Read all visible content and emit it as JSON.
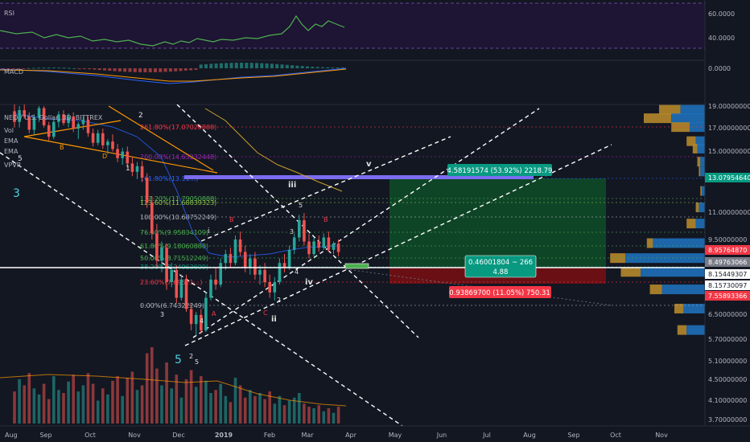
{
  "panes": {
    "rsi": {
      "title": "RSI",
      "ticks": [
        "60.0000",
        "40.0000"
      ]
    },
    "macd": {
      "title": "MACD",
      "ticks": [
        "0.0000"
      ]
    }
  },
  "main": {
    "symbol_line": "NEO / U.S. Dollar, 3D, BITTREX",
    "indicators": [
      "Vol",
      "EMA",
      "EMA",
      "VPVR"
    ]
  },
  "axis": {
    "y_ticks": [
      "19.00000000",
      "17.00000000",
      "15.00000000",
      "11.00000000",
      "9.50000000",
      "6.50000000",
      "5.70000000",
      "5.10000000",
      "4.50000000",
      "4.10000000",
      "3.70000000"
    ],
    "x_ticks": [
      "Aug",
      "Sep",
      "Oct",
      "Nov",
      "Dec",
      "2019",
      "Feb",
      "Mar",
      "Apr",
      "May",
      "Jun",
      "Jul",
      "Aug",
      "Sep",
      "Oct",
      "Nov"
    ]
  },
  "price_tags": [
    {
      "text": "13.07954640",
      "bg": "#089981",
      "fg": "#ffffff"
    },
    {
      "text": "8.95764870",
      "bg": "#f23645",
      "fg": "#ffffff"
    },
    {
      "text": "8.49763066",
      "bg": "#787b86",
      "fg": "#ffffff"
    },
    {
      "text": "8.15449307",
      "bg": "#ffffff",
      "fg": "#131722"
    },
    {
      "text": "8.15730097",
      "bg": "#ffffff",
      "fg": "#131722"
    },
    {
      "text": "7.55893366",
      "bg": "#f23645",
      "fg": "#ffffff"
    }
  ],
  "fib_levels": [
    {
      "text": "261.80%(17.07020888)",
      "color": "#f23645"
    },
    {
      "text": "200.00%(14.63232448)",
      "color": "#9c27b0"
    },
    {
      "text": "161.80%(13.11...)",
      "color": "#2962ff"
    },
    {
      "text": "137.20%(11.79050888)",
      "color": "#4caf50"
    },
    {
      "text": "123.60%(11.68839323)",
      "color": "#8bc34a"
    },
    {
      "text": "100.00%(10.68752249)",
      "color": "#b2b5be"
    },
    {
      "text": "76.40%(9.95834109)",
      "color": "#4caf50"
    },
    {
      "text": "61.80%(9.18060888)",
      "color": "#4caf50"
    },
    {
      "text": "50.00%(8.71512249)",
      "color": "#4caf50"
    },
    {
      "text": "38.20%(8.24963609)",
      "color": "#089981"
    },
    {
      "text": "23.60%(7.69521...)",
      "color": "#f23645"
    },
    {
      "text": "0.00%(6.74322249)",
      "color": "#b2b5be"
    }
  ],
  "position": {
    "target_label": "4.58191574 (53.92%) 2218.79",
    "center_label_1": "0.46001804 ~ 266",
    "center_label_2": "4.88",
    "stop_label": "0.93869700 (11.05%) 750.31"
  },
  "waves": [
    "5",
    "3",
    "B",
    "D",
    "1",
    "2",
    "iii",
    "v",
    "5",
    "B",
    "i",
    "A",
    "3",
    "4",
    "iv",
    "C",
    "2",
    "ii",
    "3",
    "4",
    "5",
    "2",
    "5",
    "B"
  ],
  "chart_data": {
    "type": "candlestick",
    "timeframe": "3D",
    "x_range": [
      "2018-08",
      "2019-11"
    ],
    "y_range": [
      3.7,
      19.0
    ],
    "y_scale": "log",
    "candles": [
      [
        18.5,
        19.5,
        17.0,
        17.5
      ],
      [
        17.5,
        19.0,
        17.0,
        18.6
      ],
      [
        18.6,
        19.2,
        17.8,
        18.0
      ],
      [
        18.0,
        18.4,
        16.5,
        16.8
      ],
      [
        16.8,
        18.2,
        16.4,
        17.9
      ],
      [
        17.9,
        19.0,
        17.5,
        18.8
      ],
      [
        18.8,
        19.0,
        17.0,
        17.2
      ],
      [
        17.2,
        17.5,
        15.9,
        16.2
      ],
      [
        16.2,
        17.8,
        16.0,
        17.5
      ],
      [
        17.5,
        18.5,
        17.0,
        18.2
      ],
      [
        18.2,
        18.6,
        17.2,
        17.4
      ],
      [
        17.4,
        18.3,
        17.0,
        18.0
      ],
      [
        18.0,
        18.4,
        16.6,
        16.9
      ],
      [
        16.9,
        17.5,
        16.0,
        17.3
      ],
      [
        17.3,
        18.0,
        16.8,
        17.7
      ],
      [
        17.7,
        18.0,
        16.2,
        16.5
      ],
      [
        16.5,
        16.9,
        15.4,
        15.7
      ],
      [
        15.7,
        16.8,
        15.5,
        16.5
      ],
      [
        16.5,
        16.9,
        15.2,
        15.5
      ],
      [
        15.5,
        16.0,
        14.8,
        15.8
      ],
      [
        15.8,
        16.4,
        15.0,
        15.2
      ],
      [
        15.2,
        15.6,
        14.2,
        14.5
      ],
      [
        14.5,
        15.3,
        14.0,
        15.0
      ],
      [
        15.0,
        15.4,
        13.8,
        14.1
      ],
      [
        14.1,
        14.6,
        13.2,
        13.5
      ],
      [
        13.5,
        14.2,
        13.0,
        13.9
      ],
      [
        13.9,
        14.3,
        12.8,
        13.1
      ],
      [
        13.1,
        13.4,
        11.2,
        11.5
      ],
      [
        11.5,
        11.9,
        9.5,
        9.8
      ],
      [
        9.8,
        10.3,
        8.2,
        8.5
      ],
      [
        8.5,
        9.4,
        8.0,
        9.1
      ],
      [
        9.1,
        9.3,
        7.3,
        7.6
      ],
      [
        7.6,
        8.4,
        7.4,
        8.1
      ],
      [
        8.1,
        8.3,
        6.8,
        7.0
      ],
      [
        7.0,
        7.9,
        6.9,
        7.7
      ],
      [
        7.7,
        7.9,
        6.5,
        6.6
      ],
      [
        6.6,
        6.8,
        5.9,
        6.1
      ],
      [
        6.1,
        6.5,
        5.75,
        6.4
      ],
      [
        6.4,
        6.6,
        5.8,
        5.9
      ],
      [
        5.9,
        7.2,
        5.85,
        7.0
      ],
      [
        7.0,
        7.9,
        6.9,
        7.7
      ],
      [
        7.7,
        8.2,
        7.3,
        7.5
      ],
      [
        7.5,
        8.6,
        7.4,
        8.4
      ],
      [
        8.4,
        9.0,
        8.1,
        8.8
      ],
      [
        8.8,
        9.1,
        8.2,
        8.4
      ],
      [
        8.4,
        9.7,
        8.3,
        9.5
      ],
      [
        9.5,
        9.9,
        8.7,
        8.9
      ],
      [
        8.9,
        9.2,
        8.0,
        8.2
      ],
      [
        8.2,
        8.8,
        7.9,
        8.6
      ],
      [
        8.6,
        8.9,
        7.7,
        7.9
      ],
      [
        7.9,
        8.3,
        7.5,
        8.1
      ],
      [
        8.1,
        8.4,
        7.4,
        7.6
      ],
      [
        7.6,
        7.9,
        7.0,
        7.2
      ],
      [
        7.2,
        7.8,
        6.9,
        7.6
      ],
      [
        7.6,
        8.6,
        7.5,
        8.4
      ],
      [
        8.4,
        8.8,
        8.0,
        8.2
      ],
      [
        8.2,
        9.2,
        8.1,
        9.0
      ],
      [
        9.0,
        9.8,
        8.8,
        9.6
      ],
      [
        9.6,
        10.8,
        9.4,
        10.5
      ],
      [
        10.5,
        10.9,
        9.2,
        9.4
      ],
      [
        9.4,
        9.8,
        8.6,
        8.8
      ],
      [
        8.8,
        9.6,
        8.7,
        9.4
      ],
      [
        9.4,
        9.7,
        8.9,
        9.1
      ],
      [
        9.1,
        9.8,
        9.0,
        9.6
      ],
      [
        9.6,
        9.9,
        8.9,
        9.0
      ],
      [
        9.0,
        9.4,
        8.8,
        9.3
      ],
      [
        9.3,
        9.5,
        8.7,
        8.9
      ]
    ],
    "volume_relative": [
      0.42,
      0.58,
      0.5,
      0.66,
      0.46,
      0.38,
      0.52,
      0.32,
      0.62,
      0.44,
      0.4,
      0.55,
      0.64,
      0.42,
      0.5,
      0.66,
      0.52,
      0.3,
      0.46,
      0.38,
      0.56,
      0.62,
      0.36,
      0.6,
      0.68,
      0.44,
      0.5,
      0.92,
      1.0,
      0.72,
      0.5,
      0.8,
      0.46,
      0.64,
      0.34,
      0.58,
      0.7,
      0.48,
      0.62,
      0.56,
      0.4,
      0.44,
      0.52,
      0.36,
      0.28,
      0.6,
      0.5,
      0.34,
      0.44,
      0.36,
      0.4,
      0.32,
      0.42,
      0.26,
      0.36,
      0.24,
      0.3,
      0.34,
      0.4,
      0.26,
      0.22,
      0.2,
      0.24,
      0.16,
      0.2,
      0.14,
      0.22
    ],
    "volume_profile": [
      {
        "price": 18.6,
        "buy": 0.16,
        "sell": 0.3
      },
      {
        "price": 17.8,
        "buy": 0.22,
        "sell": 0.4
      },
      {
        "price": 17.0,
        "buy": 0.1,
        "sell": 0.22
      },
      {
        "price": 15.8,
        "buy": 0.06,
        "sell": 0.12
      },
      {
        "price": 15.2,
        "buy": 0.05,
        "sell": 0.08
      },
      {
        "price": 14.2,
        "buy": 0.03,
        "sell": 0.05
      },
      {
        "price": 13.5,
        "buy": 0.03,
        "sell": 0.04
      },
      {
        "price": 12.2,
        "buy": 0.02,
        "sell": 0.03
      },
      {
        "price": 11.2,
        "buy": 0.04,
        "sell": 0.06
      },
      {
        "price": 10.3,
        "buy": 0.06,
        "sell": 0.12
      },
      {
        "price": 9.3,
        "buy": 0.34,
        "sell": 0.38
      },
      {
        "price": 8.6,
        "buy": 0.52,
        "sell": 0.62
      },
      {
        "price": 8.0,
        "buy": 0.42,
        "sell": 0.55
      },
      {
        "price": 7.3,
        "buy": 0.28,
        "sell": 0.36
      },
      {
        "price": 6.6,
        "buy": 0.14,
        "sell": 0.2
      },
      {
        "price": 5.9,
        "buy": 0.12,
        "sell": 0.18
      }
    ]
  }
}
